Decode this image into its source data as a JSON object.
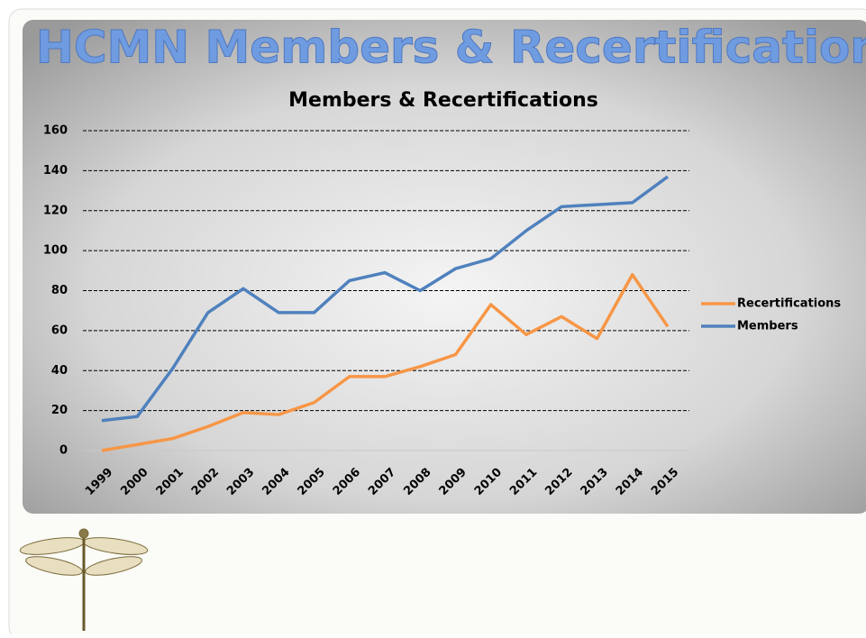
{
  "slide_title": "HCMN Members & Recertification",
  "chart_data": {
    "type": "line",
    "title": "Members & Recertifications",
    "categories": [
      "1999",
      "2000",
      "2001",
      "2002",
      "2003",
      "2004",
      "2005",
      "2006",
      "2007",
      "2008",
      "2009",
      "2010",
      "2011",
      "2012",
      "2013",
      "2014",
      "2015"
    ],
    "series": [
      {
        "name": "Recertifications",
        "color": "#f79646",
        "values": [
          0,
          3,
          6,
          12,
          19,
          18,
          24,
          37,
          37,
          42,
          48,
          73,
          58,
          67,
          56,
          88,
          62
        ]
      },
      {
        "name": "Members",
        "color": "#4f81bd",
        "values": [
          15,
          17,
          41,
          69,
          81,
          69,
          69,
          85,
          89,
          80,
          91,
          96,
          110,
          122,
          123,
          124,
          137
        ]
      }
    ],
    "ylim": [
      0,
      160
    ],
    "yticks": [
      0,
      20,
      40,
      60,
      80,
      100,
      120,
      140,
      160
    ],
    "grid": true,
    "legend": "right"
  }
}
